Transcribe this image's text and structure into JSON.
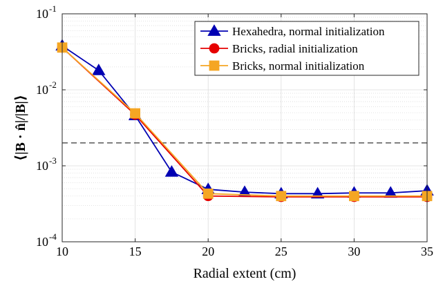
{
  "chart_data": {
    "type": "line",
    "xlabel": "Radial extent (cm)",
    "ylabel": "⟨|B · n̂|/|B|⟩",
    "xlim": [
      10,
      35
    ],
    "ylim": [
      0.0001,
      0.1
    ],
    "yscale": "log",
    "grid": true,
    "x_ticks": [
      10,
      15,
      20,
      25,
      30,
      35
    ],
    "x_tick_labels": [
      "10",
      "15",
      "20",
      "25",
      "30",
      "35"
    ],
    "y_ticks": [
      0.0001,
      0.001,
      0.01,
      0.1
    ],
    "y_tick_bases": [
      "10",
      "10",
      "10",
      "10"
    ],
    "y_tick_exponents": [
      "-4",
      "-3",
      "-2",
      "-1"
    ],
    "legend_position": "top-right",
    "reference_line": {
      "y": 0.002,
      "style": "dashed",
      "color": "#333333"
    },
    "series": [
      {
        "name": "Hexahedra, normal initialization",
        "color": "#0000b3",
        "marker": "triangle",
        "x": [
          10,
          12.5,
          15,
          17.5,
          20,
          22.5,
          25,
          27.5,
          30,
          32.5,
          35
        ],
        "y": [
          0.038,
          0.018,
          0.0046,
          0.00083,
          0.00049,
          0.00045,
          0.00043,
          0.00043,
          0.00044,
          0.00044,
          0.00047
        ]
      },
      {
        "name": "Bricks, radial initialization",
        "color": "#e60000",
        "marker": "circle",
        "x": [
          10,
          15,
          20,
          25,
          30,
          35
        ],
        "y": [
          0.036,
          0.0047,
          0.0004,
          0.00039,
          0.00039,
          0.00039
        ]
      },
      {
        "name": "Bricks, normal initialization",
        "color": "#f5a623",
        "marker": "square",
        "x": [
          10,
          15,
          20,
          25,
          30,
          35
        ],
        "y": [
          0.036,
          0.0049,
          0.00043,
          0.0004,
          0.0004,
          0.0004
        ]
      }
    ]
  }
}
